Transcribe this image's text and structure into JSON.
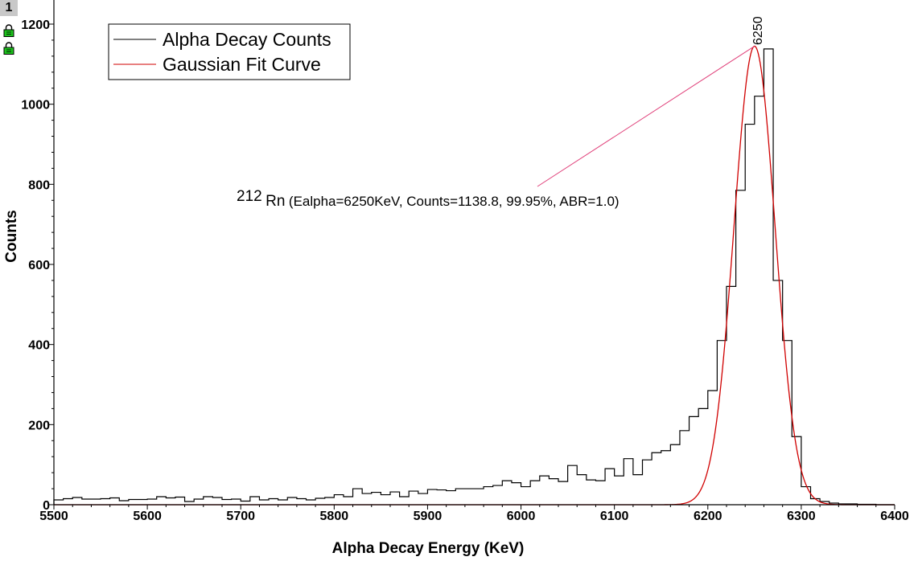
{
  "page_badge": "1",
  "colors": {
    "histogram": "#000000",
    "fit": "#d00000",
    "annotation_line": "#e0407a",
    "lock_icon": "#1cc31c"
  },
  "icons": [
    "lock-icon",
    "lock-icon"
  ],
  "chart_data": {
    "type": "line",
    "xlabel": "Alpha Decay Energy (KeV)",
    "ylabel": "Counts",
    "xlim": [
      5500,
      6400
    ],
    "ylim": [
      0,
      1200
    ],
    "xticks": [
      5500,
      5600,
      5700,
      5800,
      5900,
      6000,
      6100,
      6200,
      6300,
      6400
    ],
    "yticks": [
      0,
      200,
      400,
      600,
      800,
      1000,
      1200
    ],
    "legend_position": "top-left",
    "bin_width": 10,
    "series": [
      {
        "name": "Alpha Decay Counts",
        "style": "step",
        "x": [
          5500,
          5510,
          5520,
          5530,
          5540,
          5550,
          5560,
          5570,
          5580,
          5590,
          5600,
          5610,
          5620,
          5630,
          5640,
          5650,
          5660,
          5670,
          5680,
          5690,
          5700,
          5710,
          5720,
          5730,
          5740,
          5750,
          5760,
          5770,
          5780,
          5790,
          5800,
          5810,
          5820,
          5830,
          5840,
          5850,
          5860,
          5870,
          5880,
          5890,
          5900,
          5910,
          5920,
          5930,
          5940,
          5950,
          5960,
          5970,
          5980,
          5990,
          6000,
          6010,
          6020,
          6030,
          6040,
          6050,
          6060,
          6070,
          6080,
          6090,
          6100,
          6110,
          6120,
          6130,
          6140,
          6150,
          6160,
          6170,
          6180,
          6190,
          6200,
          6210,
          6220,
          6230,
          6240,
          6250,
          6260,
          6270,
          6280,
          6290,
          6300,
          6310,
          6320,
          6330,
          6340,
          6350,
          6360,
          6370,
          6380,
          6390
        ],
        "y": [
          12,
          15,
          18,
          14,
          14,
          15,
          17,
          10,
          13,
          13,
          14,
          20,
          17,
          19,
          8,
          14,
          20,
          18,
          13,
          14,
          9,
          20,
          12,
          15,
          12,
          18,
          15,
          12,
          16,
          18,
          25,
          20,
          40,
          28,
          31,
          25,
          32,
          20,
          34,
          28,
          38,
          37,
          35,
          40,
          40,
          40,
          45,
          48,
          60,
          55,
          45,
          60,
          72,
          65,
          58,
          98,
          75,
          62,
          60,
          90,
          72,
          115,
          75,
          112,
          130,
          135,
          150,
          185,
          220,
          240,
          285,
          410,
          545,
          785,
          950,
          1020,
          1138,
          560,
          410,
          170,
          45,
          15,
          8,
          4,
          2,
          2,
          1,
          1,
          0,
          0
        ]
      },
      {
        "name": "Gaussian Fit Curve",
        "style": "gaussian",
        "amplitude": 1145,
        "mean": 6250,
        "sigma": 22
      }
    ],
    "annotations": [
      {
        "peak_label": "6250",
        "peak_x": 6250,
        "peak_y": 1145,
        "text_sup": "212",
        "text_main": "Rn",
        "text_rest": "(Ealpha=6250KeV, Counts=1138.8, 99.95%, ABR=1.0)"
      }
    ]
  }
}
